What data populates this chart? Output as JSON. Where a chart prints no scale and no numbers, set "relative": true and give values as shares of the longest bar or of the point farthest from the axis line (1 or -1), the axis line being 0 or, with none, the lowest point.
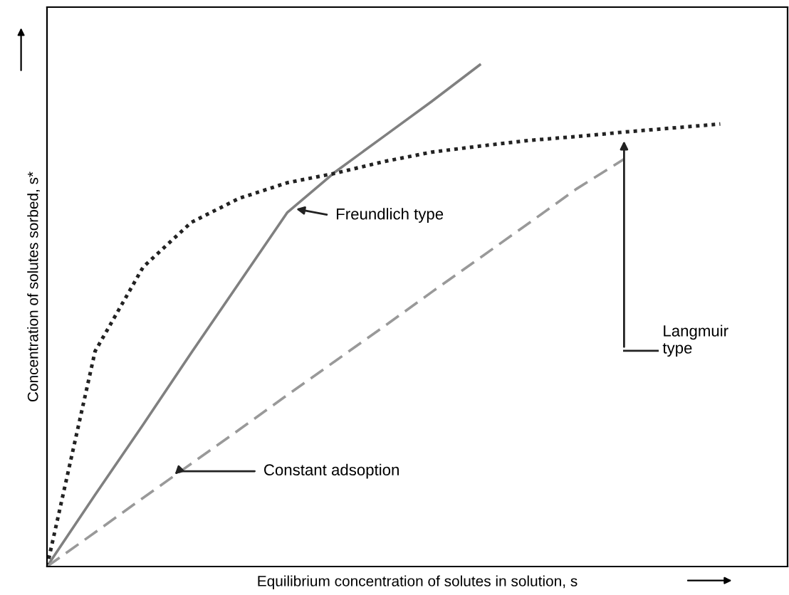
{
  "chart_data": {
    "type": "line",
    "relative": true,
    "xlabel": "Equilibrium concentration of solutes in solution, s",
    "ylabel": "Concentration of solutes sorbed, s*",
    "categories": [
      null,
      null,
      null,
      null,
      null,
      null,
      null,
      null,
      null,
      null,
      null,
      null,
      null,
      null,
      null,
      null
    ],
    "grid": false,
    "annotations": [
      "Freundlich type",
      "Langmuir type",
      "Constant adsoption"
    ],
    "series": [
      {
        "color": "#808080",
        "line_style": "solid",
        "values": [
          0,
          0.143,
          0.283,
          0.426,
          0.566,
          0.706,
          0.787,
          0.857,
          0.927,
          1.0,
          null,
          null,
          null,
          null,
          null,
          null
        ]
      },
      {
        "color": "#222222",
        "line_style": "dotted",
        "values": [
          0,
          0.429,
          0.597,
          0.686,
          0.734,
          0.765,
          0.784,
          0.807,
          0.826,
          0.838,
          0.849,
          0.857,
          0.866,
          0.874,
          0.882,
          null
        ]
      },
      {
        "color": "#999999",
        "line_style": "dashed",
        "values": [
          0,
          0.068,
          0.137,
          0.205,
          0.273,
          0.342,
          0.41,
          0.478,
          0.547,
          0.615,
          0.683,
          0.752,
          0.812,
          null,
          null,
          null
        ]
      }
    ]
  }
}
